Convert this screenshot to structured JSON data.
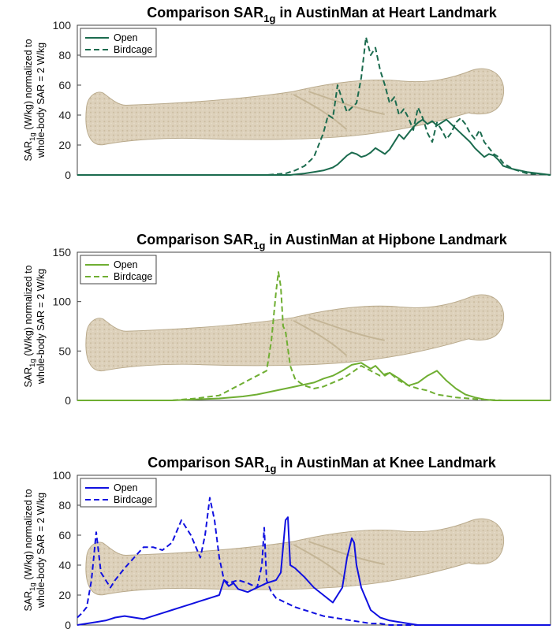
{
  "chart_data": [
    {
      "type": "line",
      "title_main": "Comparison SAR",
      "title_sub": "1g",
      "title_rest": " in AustinMan at Heart Landmark",
      "ylabel_line1_main": "SAR",
      "ylabel_line1_sub": "1g",
      "ylabel_line1_rest": " (W/kg) normalized to",
      "ylabel_line2": "whole-body SAR = 2 W/kg",
      "xlim": [
        0,
        100
      ],
      "ylim": [
        0,
        100
      ],
      "yticks": [
        "0",
        "20",
        "40",
        "60",
        "80",
        "100"
      ],
      "grid": false,
      "legend": "top-left",
      "color": "#1b6b4e",
      "series": [
        {
          "name": "Open",
          "style": "solid",
          "x": [
            0,
            5,
            10,
            20,
            30,
            40,
            45,
            48,
            50,
            52,
            54,
            55,
            56,
            57,
            58,
            59,
            60,
            61,
            62,
            63,
            64,
            65,
            66,
            67,
            68,
            69,
            70,
            71,
            72,
            73,
            74,
            75,
            76,
            77,
            78,
            79,
            80,
            81,
            82,
            83,
            84,
            85,
            86,
            87,
            88,
            89,
            90,
            92,
            95,
            100
          ],
          "y": [
            0,
            0,
            0,
            0,
            0,
            0,
            0,
            1,
            2,
            3,
            5,
            7,
            10,
            13,
            15,
            14,
            12,
            13,
            15,
            18,
            16,
            14,
            17,
            22,
            27,
            24,
            28,
            32,
            35,
            37,
            34,
            36,
            33,
            35,
            37,
            34,
            31,
            28,
            25,
            22,
            18,
            15,
            12,
            14,
            13,
            10,
            6,
            4,
            2,
            0
          ]
        },
        {
          "name": "Birdcage",
          "style": "dashed",
          "x": [
            0,
            5,
            10,
            20,
            30,
            40,
            44,
            46,
            48,
            50,
            51,
            52,
            53,
            54,
            55,
            56,
            57,
            58,
            59,
            60,
            61,
            62,
            63,
            64,
            65,
            66,
            67,
            68,
            69,
            70,
            71,
            72,
            73,
            74,
            75,
            76,
            77,
            78,
            79,
            80,
            81,
            82,
            83,
            84,
            85,
            86,
            87,
            88,
            89,
            90,
            92,
            95,
            100
          ],
          "y": [
            0,
            0,
            0,
            0,
            0,
            0,
            1,
            3,
            6,
            12,
            20,
            28,
            40,
            38,
            60,
            50,
            42,
            45,
            48,
            65,
            92,
            80,
            85,
            70,
            60,
            48,
            52,
            40,
            44,
            38,
            30,
            45,
            38,
            28,
            22,
            35,
            30,
            24,
            28,
            35,
            38,
            34,
            28,
            24,
            30,
            22,
            18,
            14,
            12,
            8,
            4,
            1,
            0
          ]
        }
      ]
    },
    {
      "type": "line",
      "title_main": "Comparison SAR",
      "title_sub": "1g",
      "title_rest": " in AustinMan at Hipbone Landmark",
      "ylabel_line1_main": "SAR",
      "ylabel_line1_sub": "1g",
      "ylabel_line1_rest": " (W/kg) normalized to",
      "ylabel_line2": "whole-body SAR = 2 W/kg",
      "xlim": [
        0,
        100
      ],
      "ylim": [
        0,
        150
      ],
      "yticks": [
        "0",
        "50",
        "100",
        "150"
      ],
      "grid": false,
      "legend": "top-left",
      "color": "#6fae32",
      "series": [
        {
          "name": "Open",
          "style": "solid",
          "x": [
            0,
            10,
            20,
            25,
            30,
            35,
            38,
            40,
            42,
            44,
            46,
            48,
            50,
            52,
            54,
            56,
            58,
            60,
            62,
            63,
            64,
            65,
            66,
            68,
            70,
            72,
            74,
            76,
            78,
            80,
            82,
            84,
            86,
            88,
            90,
            95,
            100
          ],
          "y": [
            0,
            0,
            0,
            1,
            2,
            4,
            6,
            8,
            10,
            12,
            14,
            16,
            18,
            22,
            25,
            30,
            36,
            38,
            32,
            35,
            30,
            25,
            28,
            22,
            15,
            18,
            25,
            30,
            20,
            12,
            6,
            3,
            1,
            0,
            0,
            0,
            0
          ]
        },
        {
          "name": "Birdcage",
          "style": "dashed",
          "x": [
            0,
            10,
            20,
            25,
            30,
            32,
            34,
            36,
            38,
            40,
            41,
            42,
            42.5,
            43,
            43.5,
            44,
            45,
            46,
            47,
            48,
            50,
            52,
            54,
            56,
            58,
            60,
            62,
            64,
            66,
            68,
            70,
            72,
            74,
            76,
            80,
            85,
            90,
            100
          ],
          "y": [
            0,
            0,
            0,
            2,
            5,
            10,
            15,
            20,
            25,
            30,
            60,
            110,
            130,
            115,
            75,
            70,
            35,
            22,
            18,
            15,
            12,
            14,
            18,
            22,
            28,
            35,
            30,
            25,
            28,
            20,
            15,
            12,
            10,
            6,
            3,
            1,
            0,
            0
          ]
        }
      ]
    },
    {
      "type": "line",
      "title_main": "Comparison SAR",
      "title_sub": "1g",
      "title_rest": " in AustinMan at Knee Landmark",
      "ylabel_line1_main": "SAR",
      "ylabel_line1_sub": "1g",
      "ylabel_line1_rest": " (W/kg) normalized to",
      "ylabel_line2": "whole-body SAR = 2 W/kg",
      "xlim": [
        0,
        100
      ],
      "ylim": [
        0,
        100
      ],
      "yticks": [
        "0",
        "20",
        "40",
        "60",
        "80",
        "100"
      ],
      "grid": false,
      "legend": "top-left",
      "color": "#1010e0",
      "series": [
        {
          "name": "Open",
          "style": "solid",
          "x": [
            0,
            2,
            4,
            6,
            8,
            10,
            12,
            14,
            16,
            18,
            20,
            22,
            24,
            26,
            28,
            30,
            31,
            32,
            33,
            34,
            36,
            38,
            40,
            42,
            43,
            44,
            44.5,
            45,
            46,
            47,
            48,
            50,
            52,
            54,
            56,
            57,
            58,
            58.5,
            59,
            60,
            62,
            64,
            66,
            68,
            70,
            72,
            74,
            76,
            80,
            85,
            90,
            100
          ],
          "y": [
            0,
            1,
            2,
            3,
            5,
            6,
            5,
            4,
            6,
            8,
            10,
            12,
            14,
            16,
            18,
            20,
            30,
            26,
            28,
            24,
            22,
            25,
            28,
            30,
            35,
            70,
            72,
            40,
            38,
            35,
            32,
            25,
            20,
            15,
            25,
            45,
            58,
            55,
            40,
            25,
            10,
            5,
            3,
            2,
            1,
            0,
            0,
            0,
            0,
            0,
            0,
            0
          ]
        },
        {
          "name": "Birdcage",
          "style": "dashed",
          "x": [
            0,
            1,
            2,
            3,
            4,
            5,
            6,
            7,
            8,
            10,
            12,
            14,
            16,
            18,
            20,
            22,
            24,
            26,
            27,
            28,
            29,
            30,
            31,
            32,
            34,
            36,
            38,
            39,
            39.5,
            40,
            41,
            42,
            44,
            46,
            48,
            50,
            52,
            54,
            56,
            58,
            60,
            62,
            64,
            66,
            68,
            70,
            75,
            80,
            85,
            90,
            100
          ],
          "y": [
            5,
            8,
            12,
            30,
            62,
            35,
            30,
            25,
            30,
            38,
            45,
            52,
            52,
            50,
            55,
            70,
            60,
            45,
            60,
            85,
            70,
            45,
            30,
            28,
            30,
            28,
            25,
            40,
            65,
            30,
            22,
            18,
            15,
            12,
            10,
            8,
            6,
            5,
            4,
            3,
            2,
            1,
            1,
            0,
            0,
            0,
            0,
            0,
            0,
            0,
            0
          ]
        }
      ]
    }
  ]
}
